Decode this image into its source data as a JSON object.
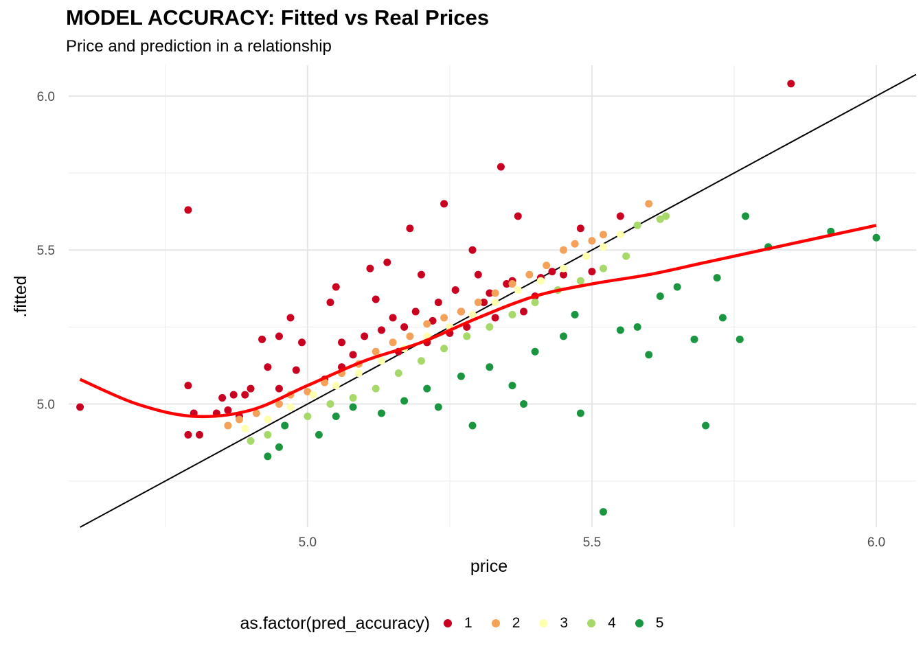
{
  "chart_data": {
    "type": "scatter",
    "title": "MODEL ACCURACY: Fitted vs Real Prices",
    "subtitle": "Price and prediction in a relationship",
    "xlabel": "price",
    "ylabel": ".fitted",
    "xlim": [
      4.58,
      6.07
    ],
    "ylim": [
      4.6,
      6.1
    ],
    "x_ticks": [
      "5.0",
      "5.5",
      "6.0"
    ],
    "y_ticks": [
      "5.0",
      "5.5",
      "6.0"
    ],
    "x_tick_values": [
      5.0,
      5.5,
      6.0
    ],
    "y_tick_values": [
      5.0,
      5.5,
      6.0
    ],
    "grid": true,
    "legend": {
      "title": "as.factor(pred_accuracy)",
      "position": "bottom",
      "entries": [
        {
          "label": "1",
          "color": "#CA0020"
        },
        {
          "label": "2",
          "color": "#F4A25A"
        },
        {
          "label": "3",
          "color": "#FFFFB0"
        },
        {
          "label": "4",
          "color": "#A6D96A"
        },
        {
          "label": "5",
          "color": "#1A9641"
        }
      ]
    },
    "reference_line": {
      "description": "identity line y = x",
      "color": "#000000"
    },
    "smooth_line": {
      "color": "#FF0000",
      "points": [
        [
          4.6,
          5.08
        ],
        [
          4.7,
          5.0
        ],
        [
          4.8,
          4.96
        ],
        [
          4.9,
          4.98
        ],
        [
          5.0,
          5.06
        ],
        [
          5.1,
          5.14
        ],
        [
          5.2,
          5.2
        ],
        [
          5.3,
          5.28
        ],
        [
          5.4,
          5.35
        ],
        [
          5.5,
          5.39
        ],
        [
          5.6,
          5.42
        ],
        [
          5.7,
          5.46
        ],
        [
          5.8,
          5.5
        ],
        [
          5.9,
          5.54
        ],
        [
          6.0,
          5.58
        ]
      ]
    },
    "series": [
      {
        "name": "1",
        "color": "#CA0020",
        "points": [
          [
            4.6,
            4.99
          ],
          [
            4.79,
            5.63
          ],
          [
            4.79,
            5.06
          ],
          [
            4.79,
            4.9
          ],
          [
            4.8,
            4.97
          ],
          [
            4.81,
            4.9
          ],
          [
            4.84,
            4.97
          ],
          [
            4.85,
            5.02
          ],
          [
            4.86,
            4.98
          ],
          [
            4.87,
            5.03
          ],
          [
            4.88,
            4.96
          ],
          [
            4.89,
            5.03
          ],
          [
            4.9,
            5.05
          ],
          [
            4.92,
            5.21
          ],
          [
            4.93,
            5.12
          ],
          [
            4.95,
            5.22
          ],
          [
            4.95,
            5.05
          ],
          [
            4.97,
            5.28
          ],
          [
            4.98,
            5.11
          ],
          [
            4.99,
            5.2
          ],
          [
            5.03,
            5.08
          ],
          [
            5.04,
            5.33
          ],
          [
            5.05,
            5.38
          ],
          [
            5.06,
            5.2
          ],
          [
            5.06,
            5.12
          ],
          [
            5.08,
            5.16
          ],
          [
            5.1,
            5.22
          ],
          [
            5.11,
            5.44
          ],
          [
            5.12,
            5.34
          ],
          [
            5.13,
            5.24
          ],
          [
            5.14,
            5.46
          ],
          [
            5.15,
            5.28
          ],
          [
            5.16,
            5.17
          ],
          [
            5.17,
            5.25
          ],
          [
            5.18,
            5.57
          ],
          [
            5.19,
            5.3
          ],
          [
            5.2,
            5.42
          ],
          [
            5.21,
            5.2
          ],
          [
            5.22,
            5.27
          ],
          [
            5.23,
            5.33
          ],
          [
            5.24,
            5.65
          ],
          [
            5.25,
            5.23
          ],
          [
            5.26,
            5.37
          ],
          [
            5.27,
            5.3
          ],
          [
            5.28,
            5.25
          ],
          [
            5.29,
            5.5
          ],
          [
            5.3,
            5.42
          ],
          [
            5.31,
            5.33
          ],
          [
            5.32,
            5.36
          ],
          [
            5.33,
            5.28
          ],
          [
            5.34,
            5.77
          ],
          [
            5.35,
            5.39
          ],
          [
            5.36,
            5.4
          ],
          [
            5.37,
            5.61
          ],
          [
            5.38,
            5.3
          ],
          [
            5.4,
            5.35
          ],
          [
            5.41,
            5.41
          ],
          [
            5.43,
            5.43
          ],
          [
            5.45,
            5.42
          ],
          [
            5.48,
            5.57
          ],
          [
            5.5,
            5.43
          ],
          [
            5.55,
            5.61
          ],
          [
            5.85,
            6.04
          ]
        ]
      },
      {
        "name": "2",
        "color": "#F4A25A",
        "points": [
          [
            4.86,
            4.93
          ],
          [
            4.88,
            4.95
          ],
          [
            4.91,
            4.97
          ],
          [
            4.95,
            5.0
          ],
          [
            4.97,
            5.03
          ],
          [
            5.0,
            5.04
          ],
          [
            5.03,
            5.07
          ],
          [
            5.06,
            5.1
          ],
          [
            5.09,
            5.13
          ],
          [
            5.12,
            5.17
          ],
          [
            5.15,
            5.2
          ],
          [
            5.18,
            5.22
          ],
          [
            5.21,
            5.26
          ],
          [
            5.24,
            5.28
          ],
          [
            5.27,
            5.3
          ],
          [
            5.3,
            5.33
          ],
          [
            5.33,
            5.36
          ],
          [
            5.36,
            5.39
          ],
          [
            5.39,
            5.42
          ],
          [
            5.42,
            5.45
          ],
          [
            5.45,
            5.5
          ],
          [
            5.47,
            5.52
          ],
          [
            5.5,
            5.53
          ],
          [
            5.52,
            5.55
          ],
          [
            5.6,
            5.65
          ]
        ]
      },
      {
        "name": "3",
        "color": "#FFFFB0",
        "points": [
          [
            4.89,
            4.92
          ],
          [
            4.93,
            4.95
          ],
          [
            4.97,
            4.99
          ],
          [
            5.01,
            5.03
          ],
          [
            5.05,
            5.06
          ],
          [
            5.09,
            5.1
          ],
          [
            5.13,
            5.14
          ],
          [
            5.17,
            5.18
          ],
          [
            5.21,
            5.22
          ],
          [
            5.25,
            5.25
          ],
          [
            5.29,
            5.29
          ],
          [
            5.33,
            5.33
          ],
          [
            5.37,
            5.37
          ],
          [
            5.41,
            5.4
          ],
          [
            5.45,
            5.44
          ],
          [
            5.49,
            5.48
          ],
          [
            5.52,
            5.51
          ],
          [
            5.55,
            5.55
          ]
        ]
      },
      {
        "name": "4",
        "color": "#A6D96A",
        "points": [
          [
            4.9,
            4.88
          ],
          [
            4.93,
            4.9
          ],
          [
            4.96,
            4.93
          ],
          [
            5.0,
            4.96
          ],
          [
            5.04,
            5.0
          ],
          [
            5.08,
            5.02
          ],
          [
            5.12,
            5.05
          ],
          [
            5.16,
            5.1
          ],
          [
            5.2,
            5.14
          ],
          [
            5.24,
            5.18
          ],
          [
            5.28,
            5.22
          ],
          [
            5.32,
            5.25
          ],
          [
            5.36,
            5.29
          ],
          [
            5.4,
            5.33
          ],
          [
            5.44,
            5.37
          ],
          [
            5.48,
            5.4
          ],
          [
            5.52,
            5.44
          ],
          [
            5.56,
            5.48
          ],
          [
            5.58,
            5.58
          ],
          [
            5.62,
            5.6
          ],
          [
            5.63,
            5.61
          ]
        ]
      },
      {
        "name": "5",
        "color": "#1A9641",
        "points": [
          [
            4.93,
            4.83
          ],
          [
            4.95,
            4.86
          ],
          [
            4.96,
            4.93
          ],
          [
            5.02,
            4.9
          ],
          [
            5.05,
            4.96
          ],
          [
            5.08,
            4.99
          ],
          [
            5.13,
            4.97
          ],
          [
            5.17,
            5.01
          ],
          [
            5.21,
            5.05
          ],
          [
            5.23,
            4.99
          ],
          [
            5.27,
            5.09
          ],
          [
            5.29,
            4.93
          ],
          [
            5.32,
            5.12
          ],
          [
            5.36,
            5.06
          ],
          [
            5.38,
            5.0
          ],
          [
            5.4,
            5.17
          ],
          [
            5.45,
            5.22
          ],
          [
            5.47,
            5.29
          ],
          [
            5.48,
            4.97
          ],
          [
            5.52,
            4.65
          ],
          [
            5.55,
            5.24
          ],
          [
            5.58,
            5.25
          ],
          [
            5.6,
            5.16
          ],
          [
            5.62,
            5.35
          ],
          [
            5.65,
            5.38
          ],
          [
            5.68,
            5.21
          ],
          [
            5.7,
            4.93
          ],
          [
            5.72,
            5.41
          ],
          [
            5.73,
            5.28
          ],
          [
            5.76,
            5.21
          ],
          [
            5.77,
            5.61
          ],
          [
            5.81,
            5.51
          ],
          [
            5.92,
            5.56
          ],
          [
            6.0,
            5.54
          ]
        ]
      }
    ]
  }
}
